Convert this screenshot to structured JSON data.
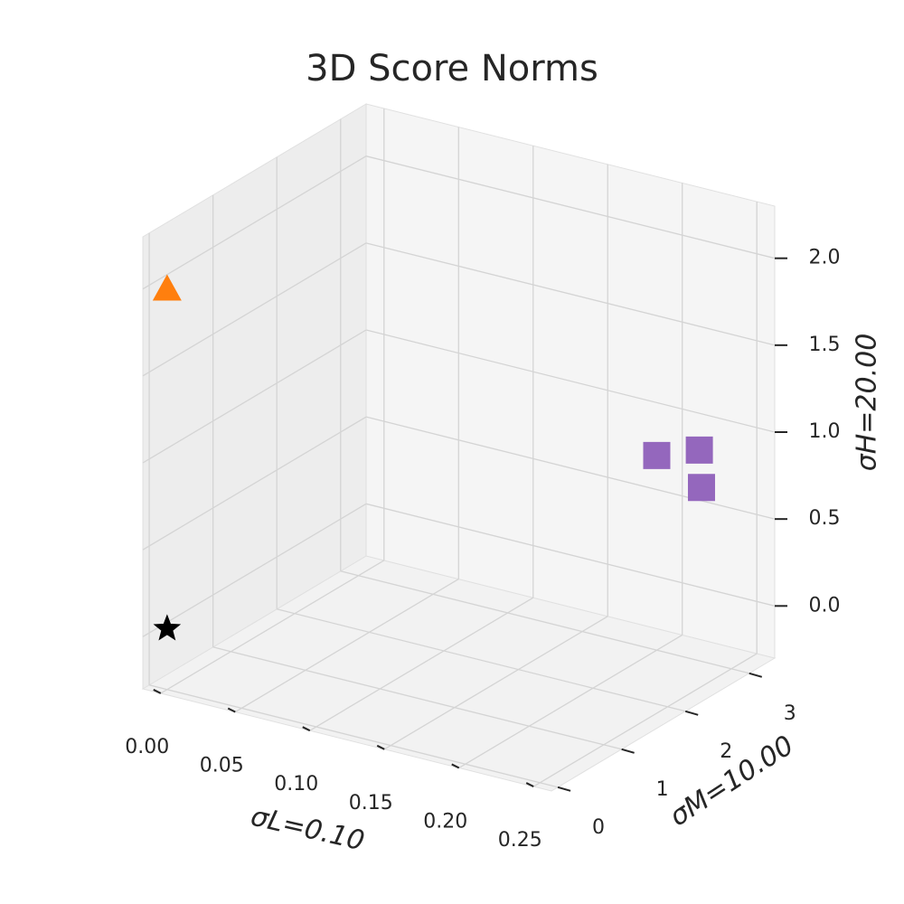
{
  "chart_data": {
    "type": "scatter3d",
    "title": "3D Score Norms",
    "xlabel": "σL=0.10",
    "ylabel": "σM=10.00",
    "zlabel": "σH=20.00",
    "xlim": [
      -0.012,
      0.262
    ],
    "ylim": [
      -0.1,
      3.4
    ],
    "zlim": [
      -0.3,
      2.3
    ],
    "xticks": [
      {
        "value": 0,
        "label": "0.00"
      },
      {
        "value": 0.05,
        "label": "0.05"
      },
      {
        "value": 0.1,
        "label": "0.10"
      },
      {
        "value": 0.15,
        "label": "0.15"
      },
      {
        "value": 0.2,
        "label": "0.20"
      },
      {
        "value": 0.25,
        "label": "0.25"
      }
    ],
    "yticks": [
      0,
      1,
      2,
      3
    ],
    "zticks": [
      {
        "value": 0,
        "label": "0.0"
      },
      {
        "value": 0.5,
        "label": "0.5"
      },
      {
        "value": 1,
        "label": "1.0"
      },
      {
        "value": 1.5,
        "label": "1.5"
      },
      {
        "value": 2,
        "label": "2.0"
      }
    ],
    "grid": true,
    "series": [
      {
        "marker": "star",
        "color": "#000000",
        "x": [
          0
        ],
        "y": [
          0
        ],
        "z": [
          0.05
        ]
      },
      {
        "marker": "triangle",
        "color": "#ff7f0e",
        "x": [
          0
        ],
        "y": [
          0
        ],
        "z": [
          2.0
        ]
      },
      {
        "marker": "square",
        "color": "#9467bd",
        "x": [
          0.2,
          0.22,
          0.23
        ],
        "y": [
          3.0,
          3.2,
          3.0
        ],
        "z": [
          0.82,
          0.85,
          0.7
        ]
      }
    ]
  }
}
